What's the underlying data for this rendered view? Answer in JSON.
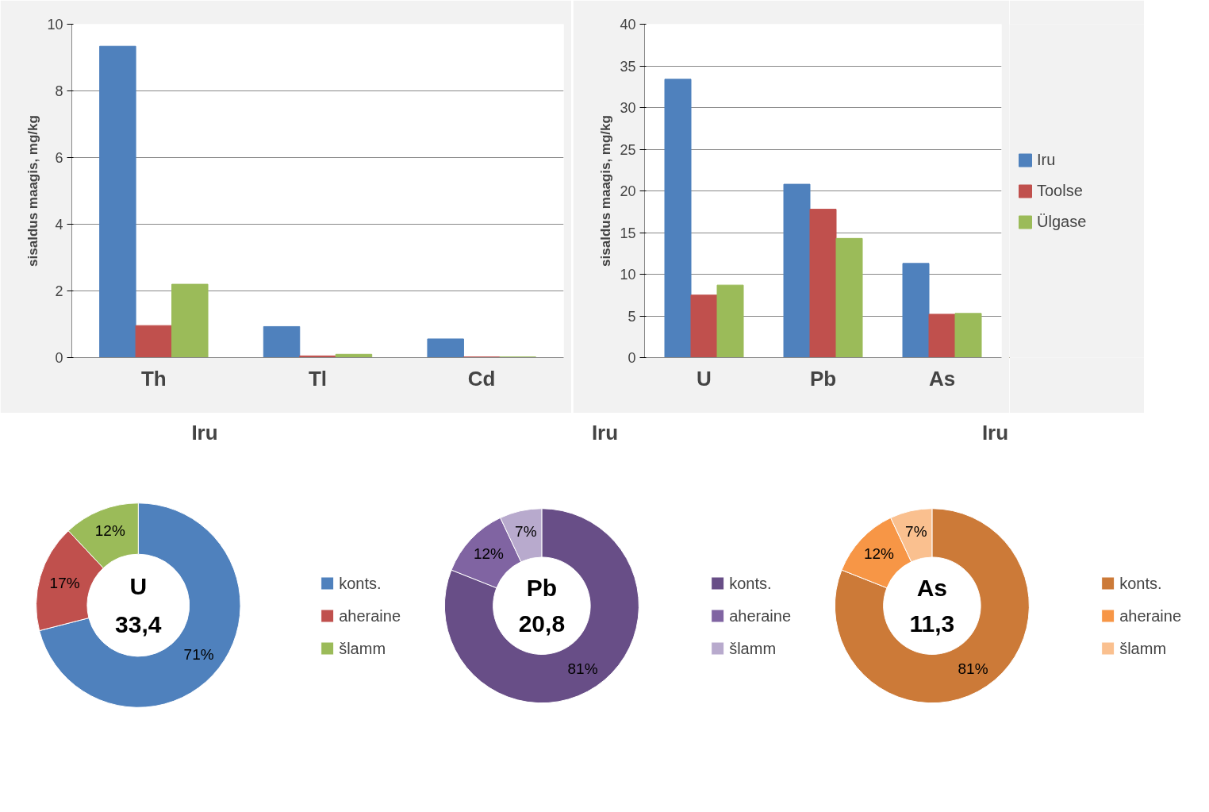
{
  "chart_data": [
    {
      "type": "bar",
      "ylabel": "sisaldus maagis, mg/kg",
      "categories": [
        "Th",
        "Tl",
        "Cd"
      ],
      "ylim": [
        0,
        10
      ],
      "yticks": [
        0,
        2,
        4,
        6,
        8,
        10
      ],
      "grid": "y",
      "legend": false,
      "series": [
        {
          "color": "#4f81bd",
          "values": [
            9.34,
            0.93,
            0.56
          ]
        },
        {
          "color": "#c0504d",
          "values": [
            0.96,
            0.05,
            0.02
          ]
        },
        {
          "color": "#9bbb59",
          "values": [
            2.2,
            0.1,
            0.02
          ]
        }
      ]
    },
    {
      "type": "bar",
      "ylabel": "sisaldus maagis, mg/kg",
      "categories": [
        "U",
        "Pb",
        "As"
      ],
      "ylim": [
        0,
        40
      ],
      "yticks": [
        0,
        5,
        10,
        15,
        20,
        25,
        30,
        35,
        40
      ],
      "grid": "y",
      "legend": "right",
      "series": [
        {
          "name": "Iru",
          "color": "#4f81bd",
          "values": [
            33.4,
            20.8,
            11.3
          ]
        },
        {
          "name": "Toolse",
          "color": "#c0504d",
          "values": [
            7.5,
            17.8,
            5.2
          ]
        },
        {
          "name": "Ülgase",
          "color": "#9bbb59",
          "values": [
            8.7,
            14.3,
            5.3
          ]
        }
      ]
    },
    {
      "type": "donut",
      "title": "Iru",
      "categories": [
        "konts.",
        "aheraine",
        "šlamm"
      ],
      "values": [
        71,
        17,
        12
      ],
      "value_labels": [
        "71%",
        "17%",
        "12%"
      ],
      "colors": [
        "#4f81bd",
        "#c0504d",
        "#9bbb59"
      ],
      "legend": "right",
      "annotations": [
        "U",
        "33,4"
      ]
    },
    {
      "type": "donut",
      "title": "Iru",
      "categories": [
        "konts.",
        "aheraine",
        "šlamm"
      ],
      "values": [
        81,
        12,
        7
      ],
      "value_labels": [
        "81%",
        "12%",
        "7%"
      ],
      "colors": [
        "#684e87",
        "#8064a2",
        "#b8aacd"
      ],
      "legend": "right",
      "annotations": [
        "Pb",
        "20,8"
      ]
    },
    {
      "type": "donut",
      "title": "Iru",
      "categories": [
        "konts.",
        "aheraine",
        "šlamm"
      ],
      "values": [
        81,
        12,
        7
      ],
      "value_labels": [
        "81%",
        "12%",
        "7%"
      ],
      "colors": [
        "#cc7a38",
        "#f79646",
        "#fac08f"
      ],
      "legend": "right",
      "annotations": [
        "As",
        "11,3"
      ]
    }
  ]
}
